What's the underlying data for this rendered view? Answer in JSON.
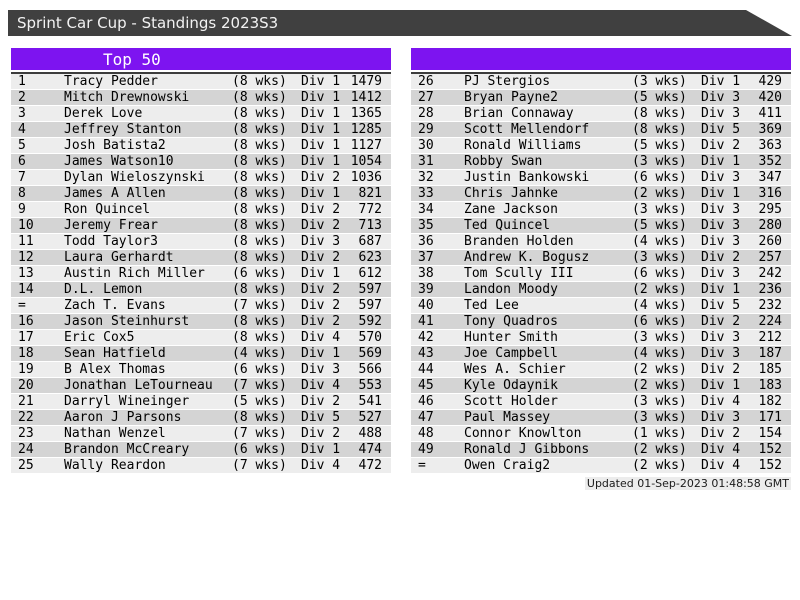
{
  "window": {
    "title": "Sprint Car Cup - Standings 2023S3"
  },
  "colors": {
    "titlebar_bg": "#404040",
    "accent_purple": "#7d14f0",
    "row_light": "#ededed",
    "row_dark": "#d4d4d4",
    "table_top_border": "#3c3c3c",
    "footer_bg": "#ececec",
    "page_bg": "#ffffff"
  },
  "footer": {
    "updated": "Updated 01-Sep-2023 01:48:58 GMT"
  },
  "panels": [
    {
      "header": "Top 50",
      "rows": [
        {
          "pos": "1",
          "name": "Tracy Pedder",
          "weeks": "(8 wks)",
          "div": "Div 1",
          "pts": "1479"
        },
        {
          "pos": "2",
          "name": "Mitch Drewnowski",
          "weeks": "(8 wks)",
          "div": "Div 1",
          "pts": "1412"
        },
        {
          "pos": "3",
          "name": "Derek Love",
          "weeks": "(8 wks)",
          "div": "Div 1",
          "pts": "1365"
        },
        {
          "pos": "4",
          "name": "Jeffrey Stanton",
          "weeks": "(8 wks)",
          "div": "Div 1",
          "pts": "1285"
        },
        {
          "pos": "5",
          "name": "Josh Batista2",
          "weeks": "(8 wks)",
          "div": "Div 1",
          "pts": "1127"
        },
        {
          "pos": "6",
          "name": "James Watson10",
          "weeks": "(8 wks)",
          "div": "Div 1",
          "pts": "1054"
        },
        {
          "pos": "7",
          "name": "Dylan Wieloszynski",
          "weeks": "(8 wks)",
          "div": "Div 2",
          "pts": "1036"
        },
        {
          "pos": "8",
          "name": "James A Allen",
          "weeks": "(8 wks)",
          "div": "Div 1",
          "pts": "821"
        },
        {
          "pos": "9",
          "name": "Ron Quincel",
          "weeks": "(8 wks)",
          "div": "Div 2",
          "pts": "772"
        },
        {
          "pos": "10",
          "name": "Jeremy Frear",
          "weeks": "(8 wks)",
          "div": "Div 2",
          "pts": "713"
        },
        {
          "pos": "11",
          "name": "Todd Taylor3",
          "weeks": "(8 wks)",
          "div": "Div 3",
          "pts": "687"
        },
        {
          "pos": "12",
          "name": "Laura Gerhardt",
          "weeks": "(8 wks)",
          "div": "Div 2",
          "pts": "623"
        },
        {
          "pos": "13",
          "name": "Austin Rich Miller",
          "weeks": "(6 wks)",
          "div": "Div 1",
          "pts": "612"
        },
        {
          "pos": "14",
          "name": "D.L. Lemon",
          "weeks": "(8 wks)",
          "div": "Div 2",
          "pts": "597"
        },
        {
          "pos": "=",
          "name": "Zach T. Evans",
          "weeks": "(7 wks)",
          "div": "Div 2",
          "pts": "597"
        },
        {
          "pos": "16",
          "name": "Jason Steinhurst",
          "weeks": "(8 wks)",
          "div": "Div 2",
          "pts": "592"
        },
        {
          "pos": "17",
          "name": "Eric Cox5",
          "weeks": "(8 wks)",
          "div": "Div 4",
          "pts": "570"
        },
        {
          "pos": "18",
          "name": "Sean Hatfield",
          "weeks": "(4 wks)",
          "div": "Div 1",
          "pts": "569"
        },
        {
          "pos": "19",
          "name": "B Alex Thomas",
          "weeks": "(6 wks)",
          "div": "Div 3",
          "pts": "566"
        },
        {
          "pos": "20",
          "name": "Jonathan LeTourneau",
          "weeks": "(7 wks)",
          "div": "Div 4",
          "pts": "553"
        },
        {
          "pos": "21",
          "name": "Darryl Wineinger",
          "weeks": "(5 wks)",
          "div": "Div 2",
          "pts": "541"
        },
        {
          "pos": "22",
          "name": "Aaron J Parsons",
          "weeks": "(8 wks)",
          "div": "Div 5",
          "pts": "527"
        },
        {
          "pos": "23",
          "name": "Nathan Wenzel",
          "weeks": "(7 wks)",
          "div": "Div 2",
          "pts": "488"
        },
        {
          "pos": "24",
          "name": "Brandon McCreary",
          "weeks": "(6 wks)",
          "div": "Div 1",
          "pts": "474"
        },
        {
          "pos": "25",
          "name": "Wally Reardon",
          "weeks": "(7 wks)",
          "div": "Div 4",
          "pts": "472"
        }
      ]
    },
    {
      "header": "",
      "rows": [
        {
          "pos": "26",
          "name": "PJ Stergios",
          "weeks": "(3 wks)",
          "div": "Div 1",
          "pts": "429"
        },
        {
          "pos": "27",
          "name": "Bryan Payne2",
          "weeks": "(5 wks)",
          "div": "Div 3",
          "pts": "420"
        },
        {
          "pos": "28",
          "name": "Brian Connaway",
          "weeks": "(8 wks)",
          "div": "Div 3",
          "pts": "411"
        },
        {
          "pos": "29",
          "name": "Scott Mellendorf",
          "weeks": "(8 wks)",
          "div": "Div 5",
          "pts": "369"
        },
        {
          "pos": "30",
          "name": "Ronald Williams",
          "weeks": "(5 wks)",
          "div": "Div 2",
          "pts": "363"
        },
        {
          "pos": "31",
          "name": "Robby Swan",
          "weeks": "(3 wks)",
          "div": "Div 1",
          "pts": "352"
        },
        {
          "pos": "32",
          "name": "Justin Bankowski",
          "weeks": "(6 wks)",
          "div": "Div 3",
          "pts": "347"
        },
        {
          "pos": "33",
          "name": "Chris Jahnke",
          "weeks": "(2 wks)",
          "div": "Div 1",
          "pts": "316"
        },
        {
          "pos": "34",
          "name": "Zane Jackson",
          "weeks": "(3 wks)",
          "div": "Div 3",
          "pts": "295"
        },
        {
          "pos": "35",
          "name": "Ted Quincel",
          "weeks": "(5 wks)",
          "div": "Div 3",
          "pts": "280"
        },
        {
          "pos": "36",
          "name": "Branden Holden",
          "weeks": "(4 wks)",
          "div": "Div 3",
          "pts": "260"
        },
        {
          "pos": "37",
          "name": "Andrew K. Bogusz",
          "weeks": "(3 wks)",
          "div": "Div 2",
          "pts": "257"
        },
        {
          "pos": "38",
          "name": "Tom Scully III",
          "weeks": "(6 wks)",
          "div": "Div 3",
          "pts": "242"
        },
        {
          "pos": "39",
          "name": "Landon Moody",
          "weeks": "(2 wks)",
          "div": "Div 1",
          "pts": "236"
        },
        {
          "pos": "40",
          "name": "Ted Lee",
          "weeks": "(4 wks)",
          "div": "Div 5",
          "pts": "232"
        },
        {
          "pos": "41",
          "name": "Tony Quadros",
          "weeks": "(6 wks)",
          "div": "Div 2",
          "pts": "224"
        },
        {
          "pos": "42",
          "name": "Hunter Smith",
          "weeks": "(3 wks)",
          "div": "Div 3",
          "pts": "212"
        },
        {
          "pos": "43",
          "name": "Joe Campbell",
          "weeks": "(4 wks)",
          "div": "Div 3",
          "pts": "187"
        },
        {
          "pos": "44",
          "name": "Wes A. Schier",
          "weeks": "(2 wks)",
          "div": "Div 2",
          "pts": "185"
        },
        {
          "pos": "45",
          "name": "Kyle Odaynik",
          "weeks": "(2 wks)",
          "div": "Div 1",
          "pts": "183"
        },
        {
          "pos": "46",
          "name": "Scott Holder",
          "weeks": "(3 wks)",
          "div": "Div 4",
          "pts": "182"
        },
        {
          "pos": "47",
          "name": "Paul Massey",
          "weeks": "(3 wks)",
          "div": "Div 3",
          "pts": "171"
        },
        {
          "pos": "48",
          "name": "Connor Knowlton",
          "weeks": "(1 wks)",
          "div": "Div 2",
          "pts": "154"
        },
        {
          "pos": "49",
          "name": "Ronald J Gibbons",
          "weeks": "(2 wks)",
          "div": "Div 4",
          "pts": "152"
        },
        {
          "pos": "=",
          "name": "Owen Craig2",
          "weeks": "(2 wks)",
          "div": "Div 4",
          "pts": "152"
        }
      ]
    }
  ]
}
